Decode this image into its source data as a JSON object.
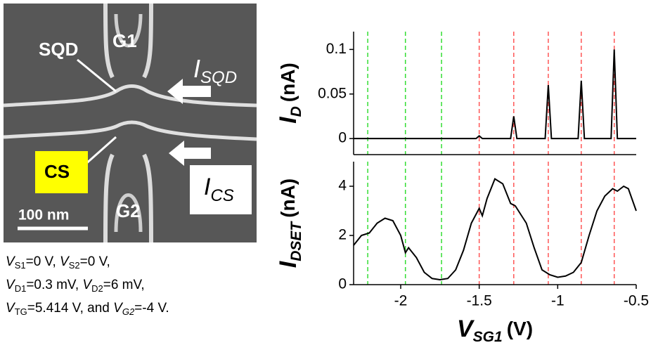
{
  "image": {
    "labels": {
      "sqd": "SQD",
      "g1": "G1",
      "g2": "G2",
      "cs": "CS",
      "scale": "100 nm",
      "isqd": {
        "main": "I",
        "sub": "SQD"
      },
      "ics": {
        "main": "I",
        "sub": "CS"
      }
    }
  },
  "caption": [
    [
      {
        "text": "V",
        "style": "italic"
      },
      {
        "text": "S1",
        "style": "sub"
      },
      {
        "text": "=0 V, ",
        "style": "plain"
      },
      {
        "text": "V",
        "style": "italic"
      },
      {
        "text": "S2",
        "style": "sub"
      },
      {
        "text": "=0 V,",
        "style": "plain"
      }
    ],
    [
      {
        "text": "V",
        "style": "italic"
      },
      {
        "text": "D1",
        "style": "sub"
      },
      {
        "text": "=0.3 mV, ",
        "style": "plain"
      },
      {
        "text": "V",
        "style": "italic"
      },
      {
        "text": "D2",
        "style": "sub"
      },
      {
        "text": "=6 mV,",
        "style": "plain"
      }
    ],
    [
      {
        "text": "V",
        "style": "italic"
      },
      {
        "text": "TG",
        "style": "sub"
      },
      {
        "text": "=5.414 V, and ",
        "style": "plain"
      },
      {
        "text": "V",
        "style": "italic"
      },
      {
        "text": "G2",
        "style": "subitalic"
      },
      {
        "text": "=-4 V.",
        "style": "plain"
      }
    ]
  ],
  "chart_data": [
    {
      "type": "line",
      "ylabel": {
        "main": "I",
        "sub": "D",
        "unit": "(nA)"
      },
      "xlim": [
        -2.3,
        -0.5
      ],
      "ylim": [
        -0.018,
        0.12
      ],
      "yticks": [
        0,
        0.05,
        0.1
      ],
      "x": [
        -2.3,
        -1.52,
        -1.5,
        -1.48,
        -1.3,
        -1.28,
        -1.26,
        -1.08,
        -1.06,
        -1.04,
        -0.87,
        -0.85,
        -0.83,
        -0.66,
        -0.64,
        -0.62,
        -0.5
      ],
      "series": [
        {
          "color": "#000000",
          "values": [
            0,
            0,
            0.003,
            0,
            0,
            0.025,
            0,
            0,
            0.06,
            0,
            0,
            0.065,
            0,
            0,
            0.1,
            0,
            0
          ]
        }
      ],
      "vlines": [
        {
          "x": -2.21,
          "color": "#33dd33"
        },
        {
          "x": -1.97,
          "color": "#33dd33"
        },
        {
          "x": -1.74,
          "color": "#33dd33"
        },
        {
          "x": -1.5,
          "color": "#ff5555"
        },
        {
          "x": -1.28,
          "color": "#ff5555"
        },
        {
          "x": -1.06,
          "color": "#ff5555"
        },
        {
          "x": -0.85,
          "color": "#ff5555"
        },
        {
          "x": -0.64,
          "color": "#ff5555"
        }
      ]
    },
    {
      "type": "line",
      "ylabel": {
        "main": "I",
        "sub": "DSET",
        "unit": "(nA)"
      },
      "xlabel": {
        "main": "V",
        "sub": "SG1",
        "unit": "(V)"
      },
      "xlim": [
        -2.3,
        -0.5
      ],
      "xticks": [
        -2,
        -1.5,
        -1,
        -0.5
      ],
      "ylim": [
        0,
        5
      ],
      "yticks": [
        0,
        2,
        4
      ],
      "x": [
        -2.3,
        -2.25,
        -2.2,
        -2.15,
        -2.1,
        -2.05,
        -2.0,
        -1.97,
        -1.95,
        -1.9,
        -1.85,
        -1.8,
        -1.75,
        -1.7,
        -1.65,
        -1.6,
        -1.55,
        -1.5,
        -1.48,
        -1.45,
        -1.4,
        -1.35,
        -1.3,
        -1.27,
        -1.2,
        -1.15,
        -1.1,
        -1.05,
        -1.0,
        -0.95,
        -0.9,
        -0.85,
        -0.8,
        -0.75,
        -0.7,
        -0.65,
        -0.62,
        -0.58,
        -0.55,
        -0.5
      ],
      "series": [
        {
          "color": "#000000",
          "values": [
            1.6,
            2.0,
            2.1,
            2.5,
            2.7,
            2.6,
            2.0,
            1.3,
            1.5,
            1.1,
            0.5,
            0.25,
            0.2,
            0.25,
            0.6,
            1.4,
            2.5,
            3.1,
            2.8,
            3.5,
            4.3,
            4.1,
            3.3,
            3.2,
            2.5,
            1.5,
            0.6,
            0.4,
            0.3,
            0.35,
            0.5,
            0.9,
            2.0,
            3.0,
            3.6,
            3.9,
            3.8,
            4.0,
            3.9,
            3.0
          ]
        }
      ],
      "vlines": [
        {
          "x": -2.21,
          "color": "#33dd33"
        },
        {
          "x": -1.97,
          "color": "#33dd33"
        },
        {
          "x": -1.74,
          "color": "#33dd33"
        },
        {
          "x": -1.5,
          "color": "#ff5555"
        },
        {
          "x": -1.28,
          "color": "#ff5555"
        },
        {
          "x": -1.06,
          "color": "#ff5555"
        },
        {
          "x": -0.85,
          "color": "#ff5555"
        },
        {
          "x": -0.64,
          "color": "#ff5555"
        }
      ]
    }
  ]
}
